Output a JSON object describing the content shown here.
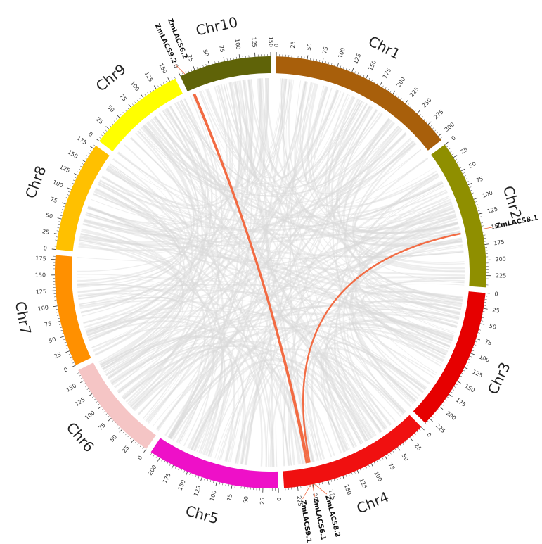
{
  "chromosomes": [
    {
      "name": "Chr1",
      "length": 308,
      "color": "#A85F0B"
    },
    {
      "name": "Chr2",
      "length": 244,
      "color": "#8F8F00"
    },
    {
      "name": "Chr3",
      "length": 235,
      "color": "#E60000"
    },
    {
      "name": "Chr4",
      "length": 247,
      "color": "#F01010"
    },
    {
      "name": "Chr5",
      "length": 217,
      "color": "#EE10C8"
    },
    {
      "name": "Chr6",
      "length": 169,
      "color": "#F5C5C5"
    },
    {
      "name": "Chr7",
      "length": 182,
      "color": "#FF9000"
    },
    {
      "name": "Chr8",
      "length": 181,
      "color": "#FFC000"
    },
    {
      "name": "Chr9",
      "length": 160,
      "color": "#FFFF00"
    },
    {
      "name": "Chr10",
      "length": 150,
      "color": "#5F6308"
    }
  ],
  "genes": [
    {
      "name": "ZmLACS8.1",
      "chr": "Chr2",
      "pos": 150
    },
    {
      "name": "ZmLACS9.2",
      "chr": "Chr10",
      "pos": 8
    },
    {
      "name": "ZmLACS6.2",
      "chr": "Chr10",
      "pos": 10
    },
    {
      "name": "ZmLACS8.2",
      "chr": "Chr4",
      "pos": 198
    },
    {
      "name": "ZmLACS6.1",
      "chr": "Chr4",
      "pos": 201
    },
    {
      "name": "ZmLACS9.1",
      "chr": "Chr4",
      "pos": 204
    }
  ],
  "highlighted_links": [
    {
      "from": "ZmLACS8.1",
      "to": "ZmLACS8.2"
    },
    {
      "from": "ZmLACS9.2",
      "to": "ZmLACS9.1"
    },
    {
      "from": "ZmLACS6.2",
      "to": "ZmLACS6.1"
    }
  ],
  "colors": {
    "highlight_link": "#F26B43",
    "background_link": "#DADADA",
    "tick": "#333333"
  },
  "tick_interval": 25
}
